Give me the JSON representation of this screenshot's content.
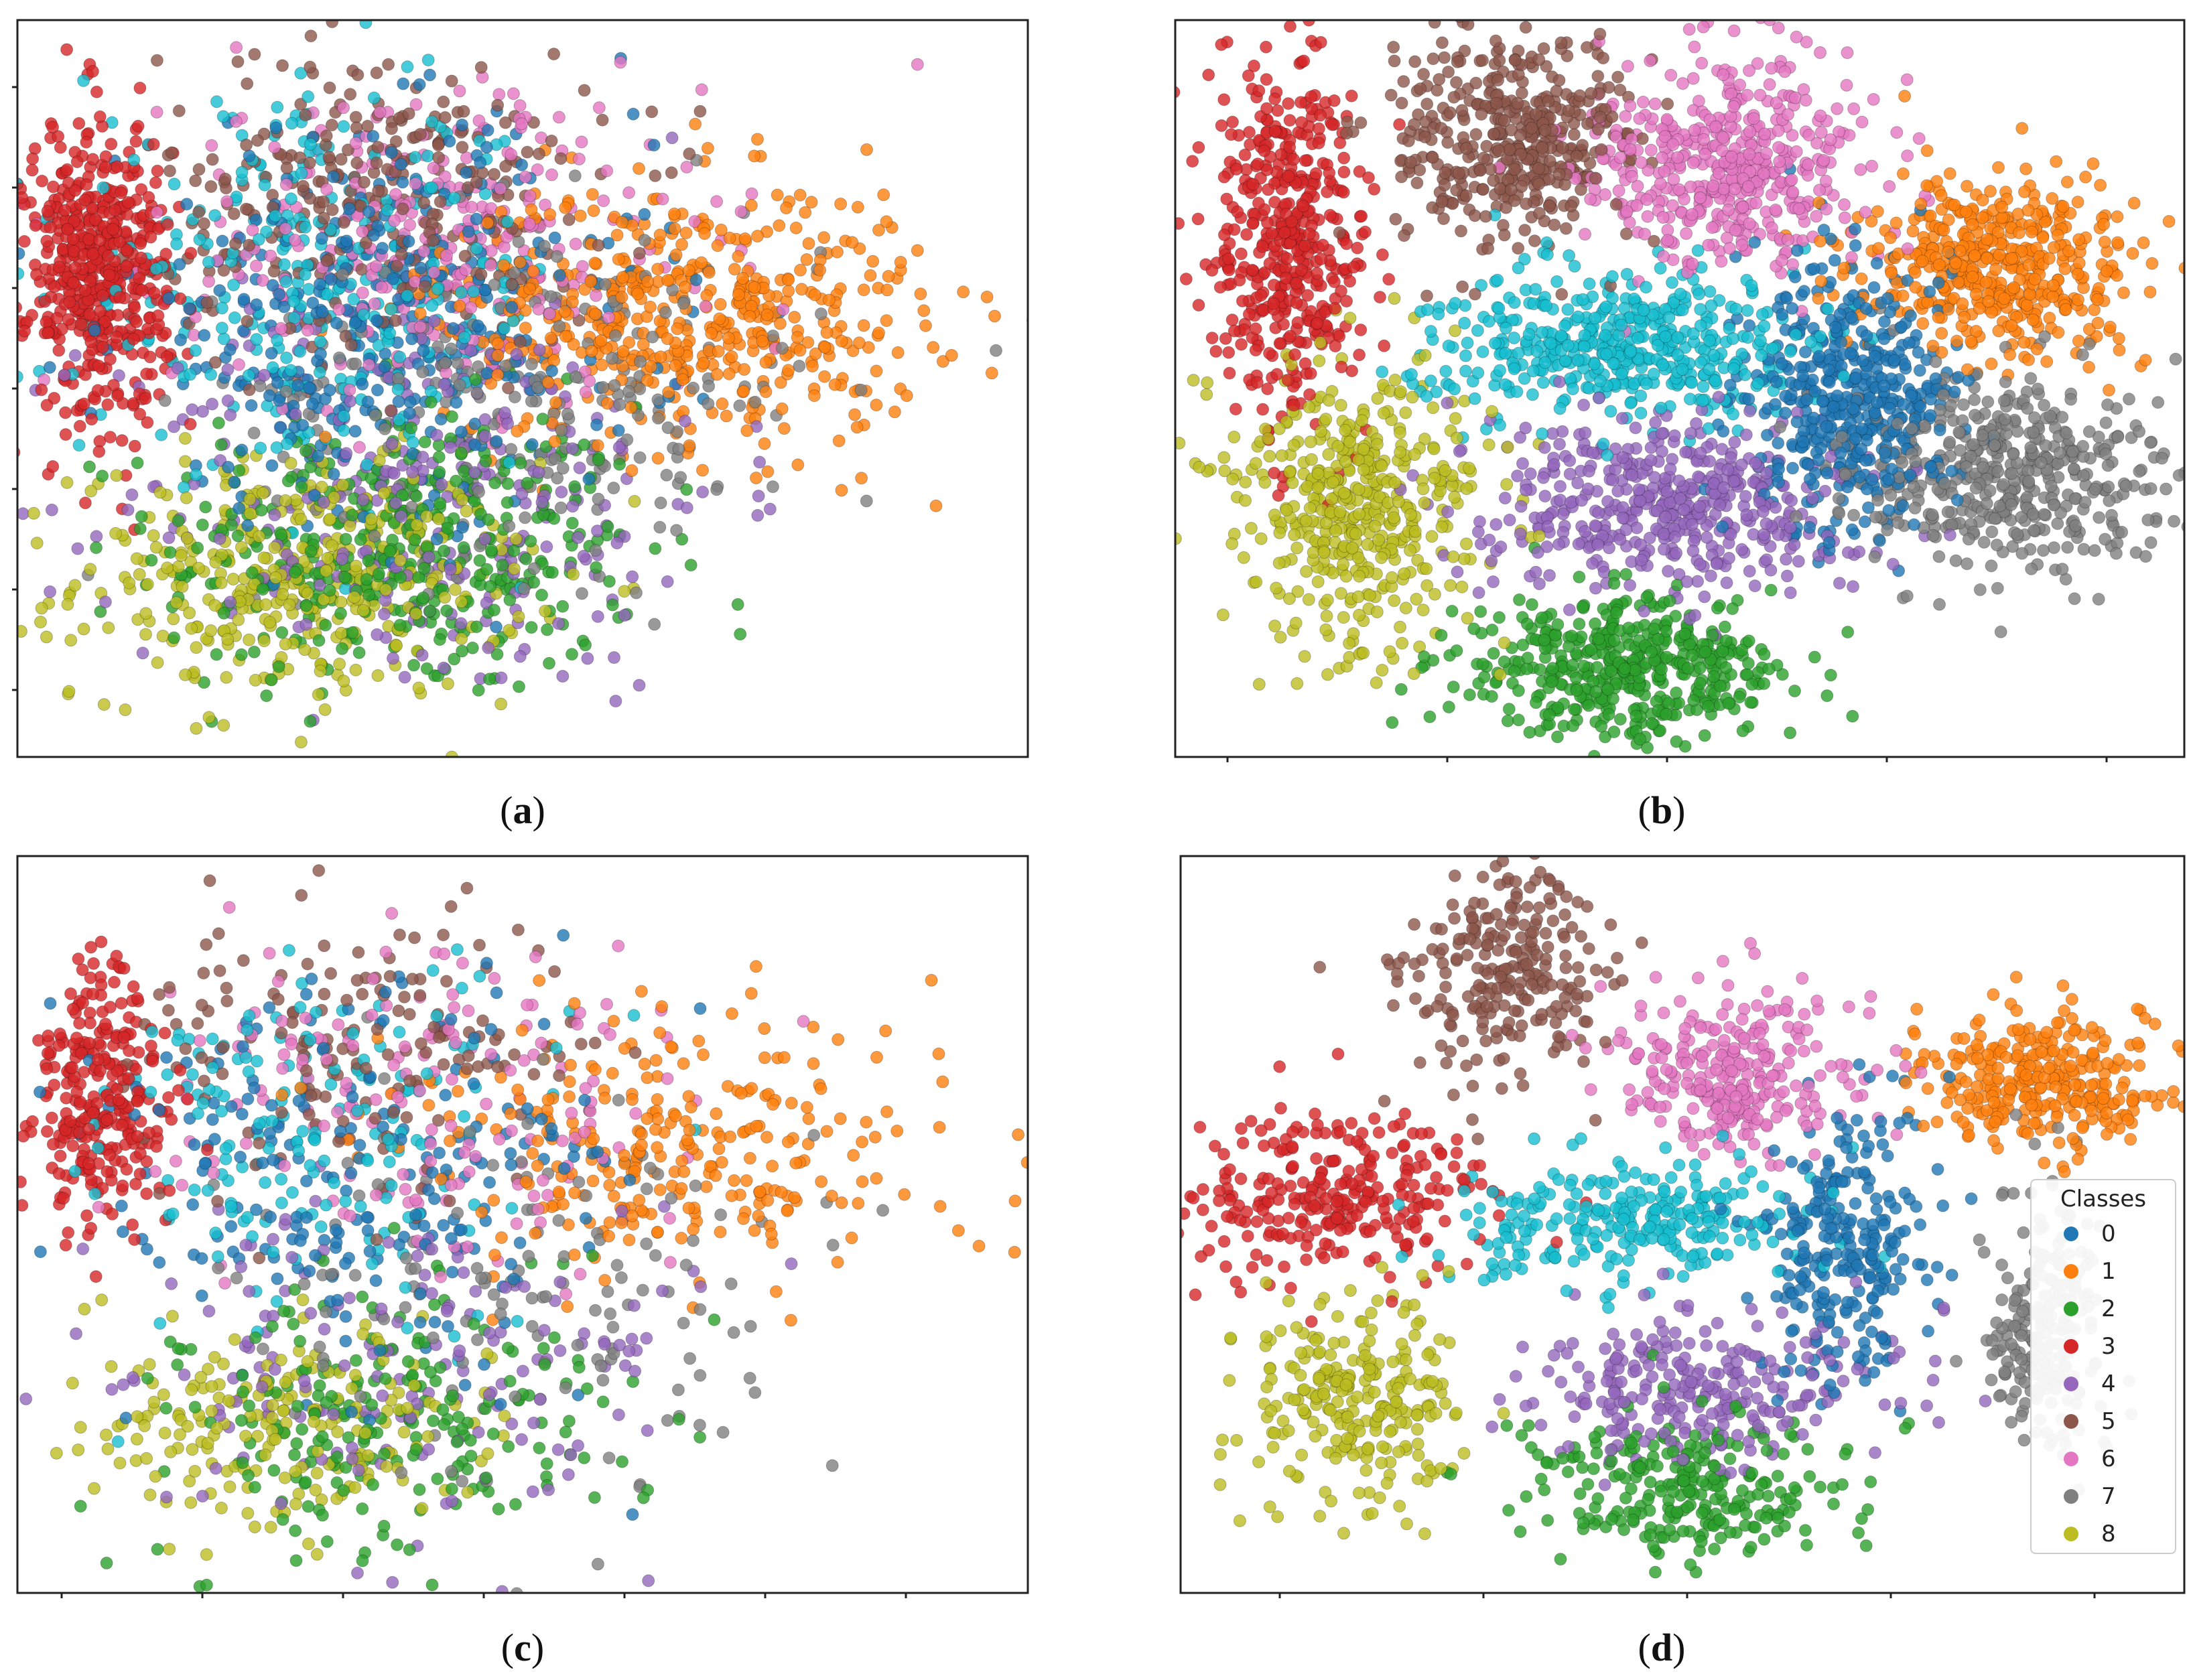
{
  "figure": {
    "captions": [
      "a",
      "b",
      "c",
      "d"
    ]
  },
  "legend": {
    "title": "Classes",
    "entries": [
      {
        "label": "0",
        "color": "#1f77b4"
      },
      {
        "label": "1",
        "color": "#ff7f0e"
      },
      {
        "label": "2",
        "color": "#2ca02c"
      },
      {
        "label": "3",
        "color": "#d62728"
      },
      {
        "label": "4",
        "color": "#9467bd"
      },
      {
        "label": "5",
        "color": "#8c564b"
      },
      {
        "label": "6",
        "color": "#e377c2"
      },
      {
        "label": "7",
        "color": "#7f7f7f"
      },
      {
        "label": "8",
        "color": "#bcbd22"
      }
    ]
  },
  "chart_data": [
    {
      "type": "scatter",
      "panel": "a",
      "xlim": [
        0,
        100
      ],
      "ylim": [
        0,
        100
      ],
      "legend": "none",
      "clusters": [
        {
          "class": "2",
          "cx": 38,
          "cy": 28,
          "sx": 12,
          "sy": 10,
          "n": 420
        },
        {
          "class": "8",
          "cx": 28,
          "cy": 24,
          "sx": 11,
          "sy": 8,
          "n": 380
        },
        {
          "class": "4",
          "cx": 40,
          "cy": 36,
          "sx": 15,
          "sy": 14,
          "n": 300
        },
        {
          "class": "7",
          "cx": 52,
          "cy": 50,
          "sx": 14,
          "sy": 12,
          "n": 260
        },
        {
          "class": "1",
          "cx": 66,
          "cy": 60,
          "sx": 12,
          "sy": 9,
          "n": 520
        },
        {
          "class": "5",
          "cx": 36,
          "cy": 76,
          "sx": 11,
          "sy": 10,
          "n": 300
        },
        {
          "class": "6",
          "cx": 42,
          "cy": 70,
          "sx": 13,
          "sy": 11,
          "n": 300
        },
        {
          "class": "0",
          "cx": 36,
          "cy": 58,
          "sx": 13,
          "sy": 13,
          "n": 380
        },
        {
          "class": "9",
          "cx": 30,
          "cy": 64,
          "sx": 12,
          "sy": 12,
          "n": 300
        },
        {
          "class": "3",
          "cx": 8,
          "cy": 66,
          "sx": 3.5,
          "sy": 10,
          "n": 520
        }
      ]
    },
    {
      "type": "scatter",
      "panel": "b",
      "xlim": [
        0,
        100
      ],
      "ylim": [
        0,
        100
      ],
      "legend": "none",
      "clusters": [
        {
          "class": "3",
          "cx": 11,
          "cy": 72,
          "sx": 4,
          "sy": 13,
          "n": 460
        },
        {
          "class": "5",
          "cx": 33,
          "cy": 84,
          "sx": 6,
          "sy": 7,
          "n": 420
        },
        {
          "class": "6",
          "cx": 55,
          "cy": 81,
          "sx": 7,
          "sy": 7,
          "n": 460
        },
        {
          "class": "1",
          "cx": 82,
          "cy": 67,
          "sx": 7,
          "sy": 6,
          "n": 460
        },
        {
          "class": "9",
          "cx": 44,
          "cy": 56,
          "sx": 9,
          "sy": 5,
          "n": 460
        },
        {
          "class": "0",
          "cx": 67,
          "cy": 49,
          "sx": 5,
          "sy": 9,
          "n": 460
        },
        {
          "class": "7",
          "cx": 83,
          "cy": 38,
          "sx": 8,
          "sy": 7,
          "n": 460
        },
        {
          "class": "8",
          "cx": 18,
          "cy": 34,
          "sx": 6,
          "sy": 10,
          "n": 460
        },
        {
          "class": "4",
          "cx": 49,
          "cy": 34,
          "sx": 9,
          "sy": 6,
          "n": 460
        },
        {
          "class": "2",
          "cx": 45,
          "cy": 12,
          "sx": 8,
          "sy": 5,
          "n": 460
        }
      ]
    },
    {
      "type": "scatter",
      "panel": "c",
      "xlim": [
        0,
        100
      ],
      "ylim": [
        0,
        100
      ],
      "legend": "none",
      "clusters": [
        {
          "class": "2",
          "cx": 36,
          "cy": 24,
          "sx": 11,
          "sy": 9,
          "n": 220
        },
        {
          "class": "8",
          "cx": 26,
          "cy": 22,
          "sx": 10,
          "sy": 7,
          "n": 200
        },
        {
          "class": "4",
          "cx": 38,
          "cy": 32,
          "sx": 14,
          "sy": 13,
          "n": 170
        },
        {
          "class": "7",
          "cx": 50,
          "cy": 42,
          "sx": 14,
          "sy": 12,
          "n": 140
        },
        {
          "class": "1",
          "cx": 64,
          "cy": 60,
          "sx": 13,
          "sy": 9,
          "n": 280
        },
        {
          "class": "5",
          "cx": 34,
          "cy": 74,
          "sx": 11,
          "sy": 10,
          "n": 160
        },
        {
          "class": "6",
          "cx": 42,
          "cy": 68,
          "sx": 13,
          "sy": 11,
          "n": 170
        },
        {
          "class": "0",
          "cx": 34,
          "cy": 58,
          "sx": 13,
          "sy": 13,
          "n": 220
        },
        {
          "class": "9",
          "cx": 28,
          "cy": 62,
          "sx": 12,
          "sy": 12,
          "n": 170
        },
        {
          "class": "3",
          "cx": 8,
          "cy": 66,
          "sx": 3.5,
          "sy": 9,
          "n": 280
        }
      ]
    },
    {
      "type": "scatter",
      "panel": "d",
      "xlim": [
        0,
        100
      ],
      "ylim": [
        0,
        100
      ],
      "legend": "right",
      "clusters": [
        {
          "class": "3",
          "cx": 16,
          "cy": 54,
          "sx": 8,
          "sy": 6,
          "n": 280
        },
        {
          "class": "5",
          "cx": 33,
          "cy": 84,
          "sx": 5,
          "sy": 7,
          "n": 240
        },
        {
          "class": "6",
          "cx": 55,
          "cy": 71,
          "sx": 6,
          "sy": 6,
          "n": 280
        },
        {
          "class": "1",
          "cx": 86,
          "cy": 70,
          "sx": 6,
          "sy": 5,
          "n": 300
        },
        {
          "class": "9",
          "cx": 45,
          "cy": 50,
          "sx": 9,
          "sy": 4,
          "n": 260
        },
        {
          "class": "0",
          "cx": 66,
          "cy": 46,
          "sx": 4,
          "sy": 9,
          "n": 260
        },
        {
          "class": "7",
          "cx": 86,
          "cy": 36,
          "sx": 3,
          "sy": 9,
          "n": 220
        },
        {
          "class": "8",
          "cx": 17,
          "cy": 26,
          "sx": 5,
          "sy": 7,
          "n": 260
        },
        {
          "class": "4",
          "cx": 52,
          "cy": 28,
          "sx": 10,
          "sy": 5,
          "n": 260
        },
        {
          "class": "2",
          "cx": 50,
          "cy": 14,
          "sx": 8,
          "sy": 5,
          "n": 260
        }
      ]
    }
  ],
  "extra_color": {
    "class": "9",
    "color": "#17becf"
  }
}
